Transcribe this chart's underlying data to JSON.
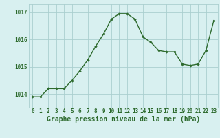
{
  "x": [
    0,
    1,
    2,
    3,
    4,
    5,
    6,
    7,
    8,
    9,
    10,
    11,
    12,
    13,
    14,
    15,
    16,
    17,
    18,
    19,
    20,
    21,
    22,
    23
  ],
  "y": [
    1013.9,
    1013.9,
    1014.2,
    1014.2,
    1014.2,
    1014.5,
    1014.85,
    1015.25,
    1015.75,
    1016.2,
    1016.75,
    1016.95,
    1016.95,
    1016.75,
    1016.1,
    1015.9,
    1015.6,
    1015.55,
    1015.55,
    1015.1,
    1015.05,
    1015.1,
    1015.6,
    1016.7
  ],
  "line_color": "#2d6a2d",
  "marker": "D",
  "marker_size": 1.8,
  "line_width": 1.0,
  "bg_color": "#d8f0f0",
  "grid_color": "#aacfcf",
  "xlabel": "Graphe pression niveau de la mer (hPa)",
  "xlabel_color": "#2d6a2d",
  "xlabel_fontsize": 7,
  "tick_color": "#2d6a2d",
  "tick_fontsize": 5.5,
  "ytick_labels": [
    "1014",
    "1015",
    "1016",
    "1017"
  ],
  "ytick_values": [
    1014,
    1015,
    1016,
    1017
  ],
  "ylim": [
    1013.5,
    1017.3
  ],
  "xlim": [
    -0.5,
    23.5
  ],
  "xtick_values": [
    0,
    1,
    2,
    3,
    4,
    5,
    6,
    7,
    8,
    9,
    10,
    11,
    12,
    13,
    14,
    15,
    16,
    17,
    18,
    19,
    20,
    21,
    22,
    23
  ]
}
